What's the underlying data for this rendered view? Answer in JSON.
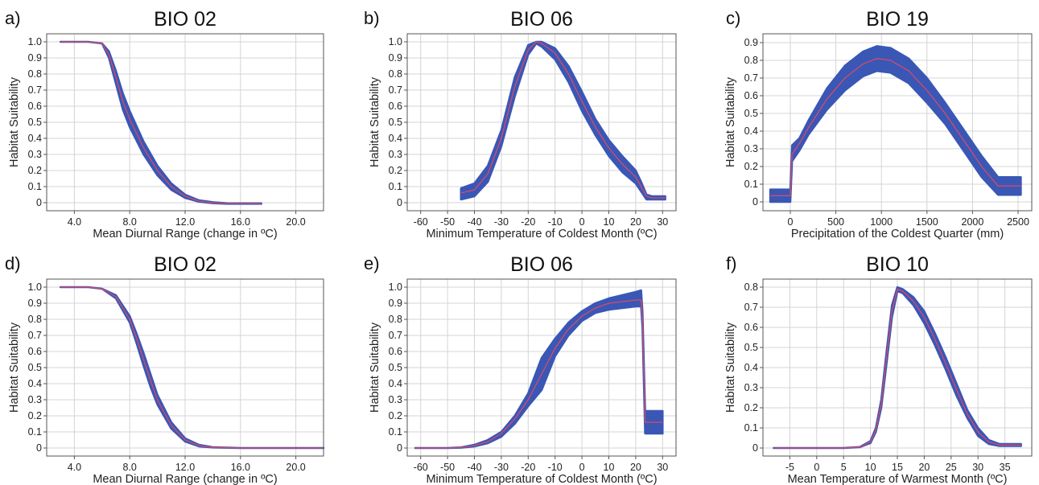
{
  "chart_data": [
    {
      "type": "line",
      "panel_label": "a)",
      "title": "BIO 02",
      "xlabel": "Mean Diurnal Range (change in ºC)",
      "ylabel": "Habitat Suitability",
      "xlim": [
        2.0,
        22.0
      ],
      "ylim": [
        -0.05,
        1.05
      ],
      "xticks": [
        4.0,
        8.0,
        12.0,
        16.0,
        20.0
      ],
      "xtick_labels": [
        "4.0",
        "8.0",
        "12.0",
        "16.0",
        "20.0"
      ],
      "yticks": [
        0,
        0.1,
        0.2,
        0.3,
        0.4,
        0.5,
        0.6,
        0.7,
        0.8,
        0.9,
        1.0
      ],
      "ytick_labels": [
        "0",
        "0.1",
        "0.2",
        "0.3",
        "0.4",
        "0.5",
        "0.6",
        "0.7",
        "0.8",
        "0.9",
        "1.0"
      ],
      "grid": true,
      "band_color": "#3a57b5",
      "line_color": "#d64a6b",
      "series": [
        {
          "role": "mean",
          "x": [
            3.0,
            5.0,
            6.0,
            6.5,
            7.0,
            7.5,
            8.0,
            9.0,
            10.0,
            11.0,
            12.0,
            13.0,
            14.0,
            15.0,
            16.0,
            17.5
          ],
          "y": [
            1.0,
            1.0,
            0.99,
            0.92,
            0.78,
            0.63,
            0.52,
            0.34,
            0.2,
            0.1,
            0.04,
            0.01,
            0.0,
            -0.005,
            -0.005,
            -0.005
          ]
        },
        {
          "role": "upper",
          "x": [
            3.0,
            5.0,
            6.0,
            6.5,
            7.0,
            7.5,
            8.0,
            9.0,
            10.0,
            11.0,
            12.0,
            13.0,
            14.0,
            15.0,
            16.0,
            17.5
          ],
          "y": [
            1.0,
            1.0,
            0.99,
            0.94,
            0.82,
            0.68,
            0.57,
            0.38,
            0.23,
            0.12,
            0.05,
            0.015,
            0.003,
            -0.003,
            -0.004,
            -0.004
          ]
        },
        {
          "role": "lower",
          "x": [
            3.0,
            5.0,
            6.0,
            6.5,
            7.0,
            7.5,
            8.0,
            9.0,
            10.0,
            11.0,
            12.0,
            13.0,
            14.0,
            15.0,
            16.0,
            17.5
          ],
          "y": [
            1.0,
            1.0,
            0.99,
            0.9,
            0.74,
            0.58,
            0.47,
            0.3,
            0.17,
            0.08,
            0.03,
            0.006,
            -0.003,
            -0.007,
            -0.007,
            -0.007
          ]
        }
      ]
    },
    {
      "type": "line",
      "panel_label": "b)",
      "title": "BIO 06",
      "xlabel": "Minimum Temperature of Coldest Month (ºC)",
      "ylabel": "Habitat Suitability",
      "xlim": [
        -65,
        35
      ],
      "ylim": [
        -0.05,
        1.05
      ],
      "xticks": [
        -60,
        -50,
        -40,
        -30,
        -20,
        -10,
        0,
        10,
        20,
        30
      ],
      "xtick_labels": [
        "-60",
        "-50",
        "-40",
        "-30",
        "-20",
        "-10",
        "0",
        "10",
        "20",
        "30"
      ],
      "yticks": [
        0,
        0.1,
        0.2,
        0.3,
        0.4,
        0.5,
        0.6,
        0.7,
        0.8,
        0.9,
        1.0
      ],
      "ytick_labels": [
        "0",
        "0.1",
        "0.2",
        "0.3",
        "0.4",
        "0.5",
        "0.6",
        "0.7",
        "0.8",
        "0.9",
        "1.0"
      ],
      "grid": true,
      "band_color": "#3a57b5",
      "line_color": "#d64a6b",
      "series": [
        {
          "role": "mean",
          "x": [
            -45,
            -40,
            -35,
            -30,
            -25,
            -20,
            -17,
            -15,
            -10,
            -5,
            0,
            5,
            10,
            15,
            20,
            22,
            24,
            26,
            31
          ],
          "y": [
            0.06,
            0.08,
            0.18,
            0.4,
            0.72,
            0.95,
            1.0,
            0.99,
            0.93,
            0.8,
            0.63,
            0.47,
            0.34,
            0.24,
            0.16,
            0.1,
            0.04,
            0.03,
            0.03
          ]
        },
        {
          "role": "upper",
          "x": [
            -45,
            -40,
            -35,
            -30,
            -25,
            -20,
            -17,
            -15,
            -10,
            -5,
            0,
            5,
            10,
            15,
            20,
            22,
            24,
            26,
            31
          ],
          "y": [
            0.09,
            0.12,
            0.23,
            0.45,
            0.78,
            0.98,
            1.0,
            1.0,
            0.96,
            0.85,
            0.69,
            0.52,
            0.39,
            0.29,
            0.2,
            0.13,
            0.05,
            0.04,
            0.04
          ]
        },
        {
          "role": "lower",
          "x": [
            -45,
            -40,
            -35,
            -30,
            -25,
            -20,
            -17,
            -15,
            -10,
            -5,
            0,
            5,
            10,
            15,
            20,
            22,
            24,
            26,
            31
          ],
          "y": [
            0.02,
            0.04,
            0.13,
            0.35,
            0.66,
            0.92,
            0.99,
            0.97,
            0.89,
            0.75,
            0.57,
            0.42,
            0.29,
            0.19,
            0.12,
            0.07,
            0.02,
            0.02,
            0.02
          ]
        }
      ]
    },
    {
      "type": "line",
      "panel_label": "c)",
      "title": "BIO 19",
      "xlabel": "Precipitation of the Coldest Quarter (mm)",
      "ylabel": "Habitat Suitability",
      "xlim": [
        -300,
        2650
      ],
      "ylim": [
        -0.05,
        0.95
      ],
      "xticks": [
        0,
        500,
        1000,
        1500,
        2000,
        2500
      ],
      "xtick_labels": [
        "0",
        "500",
        "1000",
        "1500",
        "2000",
        "2500"
      ],
      "yticks": [
        0,
        0.1,
        0.2,
        0.3,
        0.4,
        0.5,
        0.6,
        0.7,
        0.8,
        0.9
      ],
      "ytick_labels": [
        "0",
        "0.1",
        "0.2",
        "0.3",
        "0.4",
        "0.5",
        "0.6",
        "0.7",
        "0.8",
        "0.9"
      ],
      "grid": true,
      "band_color": "#3a57b5",
      "line_color": "#d64a6b",
      "series": [
        {
          "role": "mean",
          "x": [
            -220,
            -50,
            0,
            20,
            100,
            200,
            400,
            600,
            800,
            950,
            1100,
            1300,
            1500,
            1700,
            1900,
            2100,
            2280,
            2400,
            2530
          ],
          "y": [
            0.035,
            0.035,
            0.035,
            0.27,
            0.33,
            0.42,
            0.58,
            0.7,
            0.78,
            0.81,
            0.8,
            0.74,
            0.63,
            0.5,
            0.35,
            0.2,
            0.09,
            0.09,
            0.09
          ]
        },
        {
          "role": "upper",
          "x": [
            -220,
            -50,
            0,
            20,
            100,
            200,
            400,
            600,
            800,
            950,
            1100,
            1300,
            1500,
            1700,
            1900,
            2100,
            2280,
            2400,
            2530
          ],
          "y": [
            0.07,
            0.07,
            0.07,
            0.32,
            0.36,
            0.46,
            0.64,
            0.77,
            0.85,
            0.88,
            0.87,
            0.81,
            0.7,
            0.56,
            0.41,
            0.26,
            0.14,
            0.14,
            0.14
          ]
        },
        {
          "role": "lower",
          "x": [
            -220,
            -50,
            0,
            20,
            100,
            200,
            400,
            600,
            800,
            950,
            1100,
            1300,
            1500,
            1700,
            1900,
            2100,
            2280,
            2400,
            2530
          ],
          "y": [
            0.0,
            0.0,
            0.0,
            0.23,
            0.29,
            0.38,
            0.52,
            0.63,
            0.71,
            0.74,
            0.73,
            0.67,
            0.56,
            0.44,
            0.29,
            0.14,
            0.04,
            0.04,
            0.04
          ]
        }
      ]
    },
    {
      "type": "line",
      "panel_label": "d)",
      "title": "BIO 02",
      "xlabel": "Mean Diurnal Range (change in ºC)",
      "ylabel": "Habitat Suitability",
      "xlim": [
        2.0,
        22.0
      ],
      "ylim": [
        -0.05,
        1.05
      ],
      "xticks": [
        4.0,
        8.0,
        12.0,
        16.0,
        20.0
      ],
      "xtick_labels": [
        "4.0",
        "8.0",
        "12.0",
        "16.0",
        "20.0"
      ],
      "yticks": [
        0,
        0.1,
        0.2,
        0.3,
        0.4,
        0.5,
        0.6,
        0.7,
        0.8,
        0.9,
        1.0
      ],
      "ytick_labels": [
        "0",
        "0.1",
        "0.2",
        "0.3",
        "0.4",
        "0.5",
        "0.6",
        "0.7",
        "0.8",
        "0.9",
        "1.0"
      ],
      "grid": true,
      "band_color": "#3a57b5",
      "line_color": "#d64a6b",
      "series": [
        {
          "role": "mean",
          "x": [
            3.0,
            5.0,
            6.0,
            7.0,
            8.0,
            8.5,
            9.0,
            9.5,
            10.0,
            11.0,
            12.0,
            13.0,
            14.0,
            16.0,
            18.0,
            22.0
          ],
          "y": [
            1.0,
            1.0,
            0.99,
            0.94,
            0.8,
            0.68,
            0.55,
            0.42,
            0.3,
            0.14,
            0.05,
            0.015,
            0.004,
            0.0,
            0.0,
            0.0
          ]
        },
        {
          "role": "upper",
          "x": [
            3.0,
            5.0,
            6.0,
            7.0,
            8.0,
            8.5,
            9.0,
            9.5,
            10.0,
            11.0,
            12.0,
            13.0,
            14.0,
            16.0,
            18.0,
            22.0
          ],
          "y": [
            1.0,
            1.0,
            0.99,
            0.95,
            0.82,
            0.71,
            0.59,
            0.46,
            0.33,
            0.16,
            0.06,
            0.02,
            0.005,
            0.0,
            0.0,
            0.0
          ]
        },
        {
          "role": "lower",
          "x": [
            3.0,
            5.0,
            6.0,
            7.0,
            8.0,
            8.5,
            9.0,
            9.5,
            10.0,
            11.0,
            12.0,
            13.0,
            14.0,
            16.0,
            18.0,
            22.0
          ],
          "y": [
            1.0,
            1.0,
            0.99,
            0.93,
            0.78,
            0.65,
            0.51,
            0.38,
            0.27,
            0.12,
            0.04,
            0.01,
            0.003,
            0.0,
            0.0,
            0.0
          ]
        }
      ]
    },
    {
      "type": "line",
      "panel_label": "e)",
      "title": "BIO 06",
      "xlabel": "Minimum Temperature of Coldest Month (ºC)",
      "ylabel": "Habitat Suitability",
      "xlim": [
        -65,
        35
      ],
      "ylim": [
        -0.05,
        1.05
      ],
      "xticks": [
        -60,
        -50,
        -40,
        -30,
        -20,
        -10,
        0,
        10,
        20,
        30
      ],
      "xtick_labels": [
        "-60",
        "-50",
        "-40",
        "-30",
        "-20",
        "-10",
        "0",
        "10",
        "20",
        "30"
      ],
      "yticks": [
        0,
        0.1,
        0.2,
        0.3,
        0.4,
        0.5,
        0.6,
        0.7,
        0.8,
        0.9,
        1.0
      ],
      "ytick_labels": [
        "0",
        "0.1",
        "0.2",
        "0.3",
        "0.4",
        "0.5",
        "0.6",
        "0.7",
        "0.8",
        "0.9",
        "1.0"
      ],
      "grid": true,
      "band_color": "#3a57b5",
      "line_color": "#d64a6b",
      "series": [
        {
          "role": "mean",
          "x": [
            -62,
            -50,
            -45,
            -40,
            -35,
            -30,
            -25,
            -20,
            -15,
            -10,
            -5,
            0,
            5,
            10,
            15,
            20,
            22,
            22.5,
            23.5,
            26,
            30
          ],
          "y": [
            0.0,
            0.0,
            0.003,
            0.015,
            0.04,
            0.09,
            0.18,
            0.3,
            0.46,
            0.62,
            0.74,
            0.82,
            0.87,
            0.9,
            0.91,
            0.92,
            0.92,
            0.8,
            0.16,
            0.16,
            0.16
          ]
        },
        {
          "role": "upper",
          "x": [
            -62,
            -50,
            -45,
            -40,
            -35,
            -30,
            -25,
            -20,
            -15,
            -10,
            -5,
            0,
            5,
            10,
            15,
            20,
            22,
            22.5,
            23.5,
            26,
            30
          ],
          "y": [
            0.0,
            0.0,
            0.004,
            0.02,
            0.05,
            0.1,
            0.2,
            0.34,
            0.56,
            0.68,
            0.78,
            0.85,
            0.9,
            0.93,
            0.95,
            0.97,
            0.98,
            0.85,
            0.23,
            0.23,
            0.23
          ]
        },
        {
          "role": "lower",
          "x": [
            -62,
            -50,
            -45,
            -40,
            -35,
            -30,
            -25,
            -20,
            -15,
            -10,
            -5,
            0,
            5,
            10,
            15,
            20,
            22,
            22.5,
            23.5,
            26,
            30
          ],
          "y": [
            0.0,
            0.0,
            0.002,
            0.01,
            0.03,
            0.07,
            0.15,
            0.26,
            0.36,
            0.57,
            0.7,
            0.79,
            0.84,
            0.86,
            0.87,
            0.88,
            0.88,
            0.75,
            0.09,
            0.09,
            0.09
          ]
        }
      ]
    },
    {
      "type": "line",
      "panel_label": "f)",
      "title": "BIO 10",
      "xlabel": "Mean Temperature of Warmest Month (ºC)",
      "ylabel": "Habitat Suitability",
      "xlim": [
        -10,
        40
      ],
      "ylim": [
        -0.04,
        0.84
      ],
      "xticks": [
        -5,
        0,
        5,
        10,
        15,
        20,
        25,
        30,
        35
      ],
      "xtick_labels": [
        "-5",
        "0",
        "5",
        "10",
        "15",
        "20",
        "25",
        "30",
        "35"
      ],
      "yticks": [
        0,
        0.1,
        0.2,
        0.3,
        0.4,
        0.5,
        0.6,
        0.7,
        0.8
      ],
      "ytick_labels": [
        "0",
        "0.1",
        "0.2",
        "0.3",
        "0.4",
        "0.5",
        "0.6",
        "0.7",
        "0.8"
      ],
      "grid": true,
      "band_color": "#3a57b5",
      "line_color": "#d64a6b",
      "series": [
        {
          "role": "mean",
          "x": [
            -8,
            0,
            5,
            8,
            10,
            11,
            12,
            13,
            14,
            15,
            16,
            18,
            20,
            22,
            24,
            26,
            28,
            30,
            32,
            34,
            35,
            38
          ],
          "y": [
            0.0,
            0.0,
            0.0,
            0.005,
            0.03,
            0.09,
            0.22,
            0.45,
            0.68,
            0.79,
            0.78,
            0.73,
            0.65,
            0.54,
            0.42,
            0.29,
            0.17,
            0.08,
            0.03,
            0.015,
            0.015,
            0.015
          ]
        },
        {
          "role": "upper",
          "x": [
            -8,
            0,
            5,
            8,
            10,
            11,
            12,
            13,
            14,
            15,
            16,
            18,
            20,
            22,
            24,
            26,
            28,
            30,
            32,
            34,
            35,
            38
          ],
          "y": [
            0.0,
            0.0,
            0.0,
            0.005,
            0.035,
            0.1,
            0.24,
            0.48,
            0.71,
            0.8,
            0.79,
            0.75,
            0.68,
            0.57,
            0.45,
            0.32,
            0.19,
            0.1,
            0.04,
            0.02,
            0.02,
            0.02
          ]
        },
        {
          "role": "lower",
          "x": [
            -8,
            0,
            5,
            8,
            10,
            11,
            12,
            13,
            14,
            15,
            16,
            18,
            20,
            22,
            24,
            26,
            28,
            30,
            32,
            34,
            35,
            38
          ],
          "y": [
            0.0,
            0.0,
            0.0,
            0.004,
            0.025,
            0.08,
            0.2,
            0.42,
            0.65,
            0.78,
            0.77,
            0.71,
            0.62,
            0.51,
            0.39,
            0.26,
            0.15,
            0.06,
            0.02,
            0.01,
            0.01,
            0.01
          ]
        }
      ]
    }
  ]
}
